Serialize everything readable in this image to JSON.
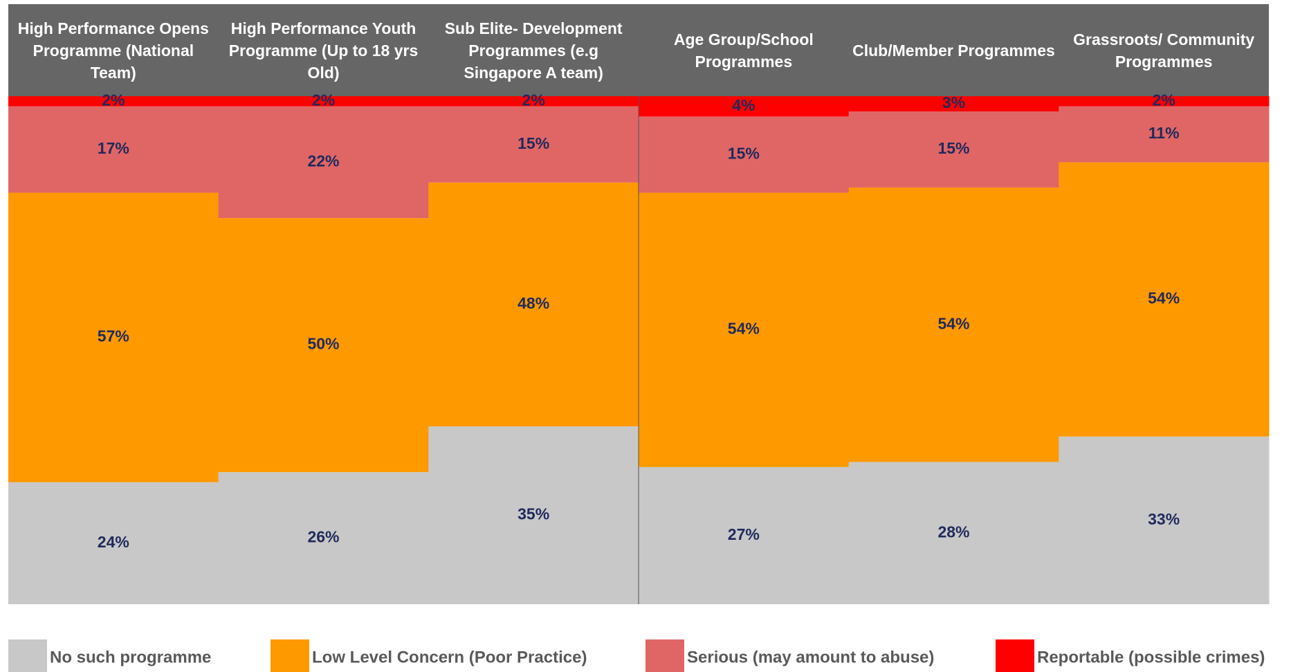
{
  "chart_data": {
    "type": "stacked_bar_100",
    "categories": [
      "High Performance Opens Programme (National Team)",
      "High Performance Youth Programme (Up to 18 yrs Old)",
      "Sub Elite- Development Programmes (e.g Singapore A team)",
      "Age Group/School Programmes",
      "Club/Member Programmes",
      "Grassroots/ Community Programmes"
    ],
    "series": [
      {
        "name": "No such programme",
        "color": "#c8c8c8",
        "values": [
          24,
          26,
          35,
          27,
          28,
          33
        ],
        "value_labels": [
          "24%",
          "26%",
          "35%",
          "27%",
          "28%",
          "33%"
        ]
      },
      {
        "name": "Low Level Concern (Poor Practice)",
        "color": "#ff9900",
        "values": [
          57,
          50,
          48,
          54,
          54,
          54
        ],
        "value_labels": [
          "57%",
          "50%",
          "48%",
          "54%",
          "54%",
          "54%"
        ]
      },
      {
        "name": "Serious (may amount to abuse)",
        "color": "#e06666",
        "values": [
          17,
          22,
          15,
          15,
          15,
          11
        ],
        "value_labels": [
          "17%",
          "22%",
          "15%",
          "15%",
          "15%",
          "11%"
        ]
      },
      {
        "name": "Reportable (possible crimes)",
        "color": "#ff0000",
        "values": [
          2,
          2,
          2,
          4,
          3,
          2
        ],
        "value_labels": [
          "2%",
          "2%",
          "2%",
          "4%",
          "3%",
          "2%"
        ]
      }
    ],
    "legend": "bottom"
  }
}
